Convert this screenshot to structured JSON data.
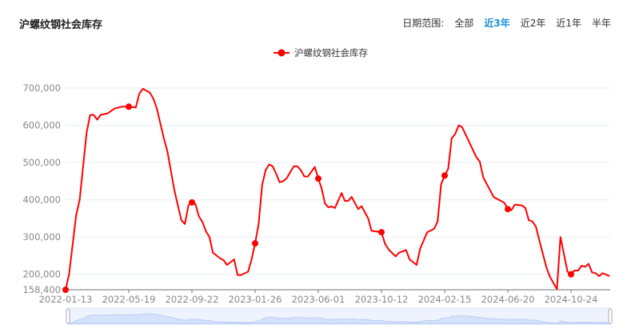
{
  "header": {
    "title": "沪螺纹钢社会库存",
    "range_label": "日期范围:",
    "range_options": [
      "全部",
      "近3年",
      "近2年",
      "近1年",
      "半年"
    ],
    "active_range": "近3年"
  },
  "colors": {
    "series": "#ff0000",
    "active_option": "#1e90d6",
    "grid": "#e6ebf5",
    "slider": "#d6e2fb"
  },
  "chart_data": {
    "type": "line",
    "title": "沪螺纹钢社会库存",
    "legend": {
      "entries": [
        "沪螺纹钢社会库存"
      ],
      "placement": "top-center"
    },
    "x_ticks": [
      "2022-01-13",
      "2022-05-19",
      "2022-09-22",
      "2023-01-26",
      "2023-06-01",
      "2023-10-12",
      "2024-02-15",
      "2024-06-20",
      "2024-10-24"
    ],
    "y_ticks": [
      "158,400",
      "200,000",
      "300,000",
      "400,000",
      "500,000",
      "600,000",
      "700,000"
    ],
    "ylim": [
      158400,
      700000
    ],
    "grid": true,
    "data_zoom_slider": true,
    "series": [
      {
        "name": "沪螺纹钢社会库存",
        "points": [
          [
            "2022-01-13",
            158400
          ],
          [
            "2022-01-20",
            200000
          ],
          [
            "2022-02-03",
            358000
          ],
          [
            "2022-02-10",
            400000
          ],
          [
            "2022-02-24",
            580000
          ],
          [
            "2022-03-03",
            628000
          ],
          [
            "2022-03-10",
            628000
          ],
          [
            "2022-03-17",
            615000
          ],
          [
            "2022-03-24",
            628000
          ],
          [
            "2022-04-07",
            632000
          ],
          [
            "2022-04-21",
            645000
          ],
          [
            "2022-05-05",
            650000
          ],
          [
            "2022-05-19",
            650000
          ],
          [
            "2022-06-02",
            648000
          ],
          [
            "2022-06-09",
            685000
          ],
          [
            "2022-06-16",
            698000
          ],
          [
            "2022-06-30",
            688000
          ],
          [
            "2022-07-07",
            672000
          ],
          [
            "2022-07-14",
            645000
          ],
          [
            "2022-07-28",
            565000
          ],
          [
            "2022-08-04",
            530000
          ],
          [
            "2022-08-18",
            425000
          ],
          [
            "2022-08-25",
            385000
          ],
          [
            "2022-09-01",
            345000
          ],
          [
            "2022-09-08",
            335000
          ],
          [
            "2022-09-15",
            385000
          ],
          [
            "2022-09-22",
            393000
          ],
          [
            "2022-09-29",
            388000
          ],
          [
            "2022-10-06",
            355000
          ],
          [
            "2022-10-13",
            340000
          ],
          [
            "2022-10-20",
            315000
          ],
          [
            "2022-10-27",
            300000
          ],
          [
            "2022-11-03",
            258000
          ],
          [
            "2022-11-17",
            243000
          ],
          [
            "2022-11-24",
            238000
          ],
          [
            "2022-12-01",
            225000
          ],
          [
            "2022-12-15",
            240000
          ],
          [
            "2022-12-22",
            198000
          ],
          [
            "2022-12-29",
            198000
          ],
          [
            "2023-01-12",
            207000
          ],
          [
            "2023-01-19",
            240000
          ],
          [
            "2023-01-26",
            283000
          ],
          [
            "2023-02-02",
            335000
          ],
          [
            "2023-02-09",
            440000
          ],
          [
            "2023-02-16",
            480000
          ],
          [
            "2023-02-23",
            495000
          ],
          [
            "2023-03-02",
            490000
          ],
          [
            "2023-03-09",
            470000
          ],
          [
            "2023-03-16",
            447000
          ],
          [
            "2023-03-23",
            450000
          ],
          [
            "2023-03-30",
            458000
          ],
          [
            "2023-04-13",
            490000
          ],
          [
            "2023-04-20",
            490000
          ],
          [
            "2023-04-27",
            480000
          ],
          [
            "2023-05-04",
            463000
          ],
          [
            "2023-05-11",
            462000
          ],
          [
            "2023-05-25",
            488000
          ],
          [
            "2023-06-01",
            457000
          ],
          [
            "2023-06-08",
            430000
          ],
          [
            "2023-06-15",
            390000
          ],
          [
            "2023-06-22",
            380000
          ],
          [
            "2023-06-29",
            382000
          ],
          [
            "2023-07-06",
            378000
          ],
          [
            "2023-07-20",
            418000
          ],
          [
            "2023-07-27",
            397000
          ],
          [
            "2023-08-03",
            397000
          ],
          [
            "2023-08-10",
            408000
          ],
          [
            "2023-08-24",
            375000
          ],
          [
            "2023-08-31",
            383000
          ],
          [
            "2023-09-14",
            350000
          ],
          [
            "2023-09-21",
            317000
          ],
          [
            "2023-10-12",
            313000
          ],
          [
            "2023-10-19",
            282000
          ],
          [
            "2023-10-26",
            267000
          ],
          [
            "2023-11-09",
            248000
          ],
          [
            "2023-11-16",
            258000
          ],
          [
            "2023-11-30",
            265000
          ],
          [
            "2023-12-07",
            240000
          ],
          [
            "2023-12-21",
            225000
          ],
          [
            "2023-12-28",
            268000
          ],
          [
            "2024-01-11",
            313000
          ],
          [
            "2024-01-25",
            322000
          ],
          [
            "2024-02-01",
            342000
          ],
          [
            "2024-02-08",
            442000
          ],
          [
            "2024-02-15",
            465000
          ],
          [
            "2024-02-22",
            483000
          ],
          [
            "2024-02-29",
            565000
          ],
          [
            "2024-03-07",
            577000
          ],
          [
            "2024-03-14",
            600000
          ],
          [
            "2024-03-21",
            595000
          ],
          [
            "2024-04-04",
            555000
          ],
          [
            "2024-04-11",
            535000
          ],
          [
            "2024-04-18",
            515000
          ],
          [
            "2024-04-25",
            503000
          ],
          [
            "2024-05-02",
            460000
          ],
          [
            "2024-05-23",
            407000
          ],
          [
            "2024-06-13",
            392000
          ],
          [
            "2024-06-20",
            375000
          ],
          [
            "2024-06-27",
            372000
          ],
          [
            "2024-07-04",
            387000
          ],
          [
            "2024-07-18",
            385000
          ],
          [
            "2024-07-25",
            378000
          ],
          [
            "2024-08-01",
            345000
          ],
          [
            "2024-08-08",
            342000
          ],
          [
            "2024-08-15",
            328000
          ],
          [
            "2024-08-22",
            290000
          ],
          [
            "2024-09-05",
            218000
          ],
          [
            "2024-09-12",
            193000
          ],
          [
            "2024-09-26",
            160000
          ],
          [
            "2024-10-03",
            300000
          ],
          [
            "2024-10-17",
            207000
          ],
          [
            "2024-10-24",
            200000
          ],
          [
            "2024-10-31",
            210000
          ],
          [
            "2024-11-07",
            210000
          ],
          [
            "2024-11-14",
            223000
          ],
          [
            "2024-11-21",
            220000
          ],
          [
            "2024-11-28",
            228000
          ],
          [
            "2024-12-05",
            205000
          ],
          [
            "2024-12-12",
            203000
          ],
          [
            "2024-12-19",
            195000
          ],
          [
            "2024-12-26",
            203000
          ],
          [
            "2025-01-09",
            195000
          ]
        ]
      }
    ]
  }
}
